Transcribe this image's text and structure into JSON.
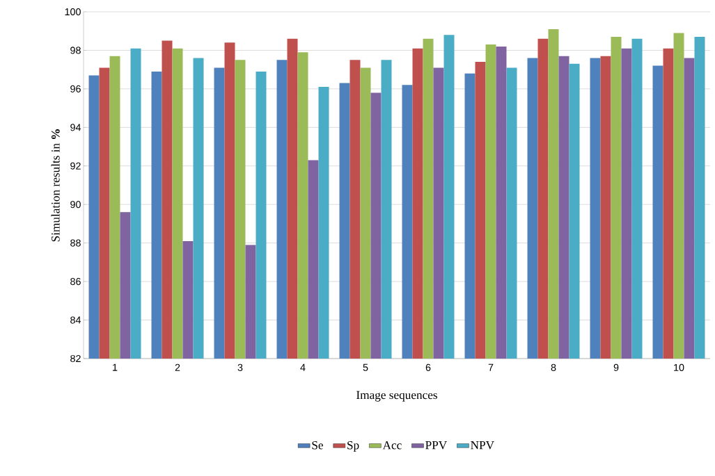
{
  "chart_data": {
    "type": "bar",
    "xlabel": "Image sequences",
    "ylabel": "Simulation results in **%**",
    "categories": [
      "1",
      "2",
      "3",
      "4",
      "5",
      "6",
      "7",
      "8",
      "9",
      "10"
    ],
    "series": [
      {
        "name": "Se",
        "color": "#4f81bd",
        "values": [
          96.7,
          96.9,
          97.1,
          97.5,
          96.3,
          96.2,
          96.8,
          97.6,
          97.6,
          97.2
        ]
      },
      {
        "name": "Sp",
        "color": "#c0504d",
        "values": [
          97.1,
          98.5,
          98.4,
          98.6,
          97.5,
          98.1,
          97.4,
          98.6,
          97.7,
          98.1
        ]
      },
      {
        "name": "Acc",
        "color": "#9bbb59",
        "values": [
          97.7,
          98.1,
          97.5,
          97.9,
          97.1,
          98.6,
          98.3,
          99.1,
          98.7,
          98.9
        ]
      },
      {
        "name": "PPV",
        "color": "#8064a2",
        "values": [
          89.6,
          88.1,
          87.9,
          92.3,
          95.8,
          97.1,
          98.2,
          97.7,
          98.1,
          97.6
        ]
      },
      {
        "name": "NPV",
        "color": "#4bacc6",
        "values": [
          98.1,
          97.6,
          96.9,
          96.1,
          97.5,
          98.8,
          97.1,
          97.3,
          98.6,
          98.7
        ]
      }
    ],
    "ylim": [
      82,
      100
    ],
    "yticks": [
      82,
      84,
      86,
      88,
      90,
      92,
      94,
      96,
      98,
      100
    ],
    "grid": "y",
    "legend": "bottom"
  }
}
